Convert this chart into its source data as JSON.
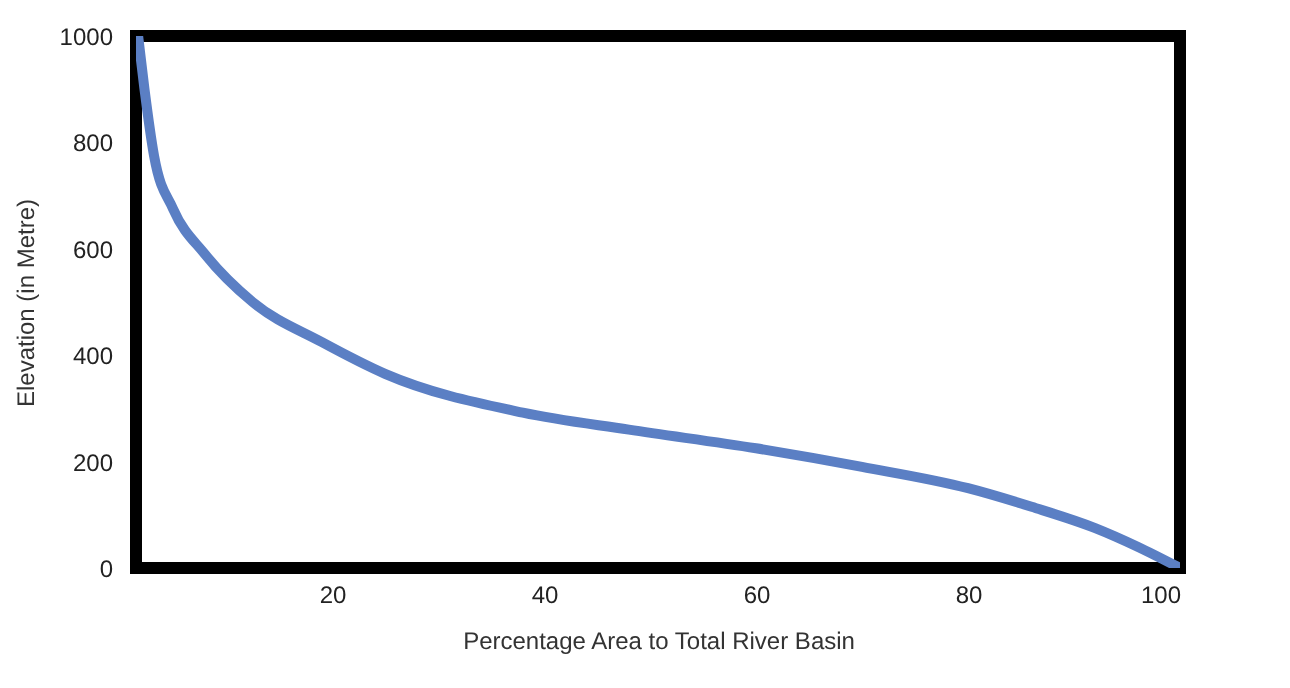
{
  "chart_data": {
    "type": "line",
    "xlabel": "Percentage Area to Total River Basin",
    "ylabel": "Elevation (in Metre)",
    "xlim": [
      1.5,
      100
    ],
    "xticks": [
      20,
      40,
      60,
      80,
      100
    ],
    "ylim": [
      0,
      1000
    ],
    "yticks": [
      0,
      200,
      400,
      600,
      800,
      1000
    ],
    "grid": false,
    "marker": "none",
    "line_style": "solid",
    "series": [
      {
        "color": "#5b7fc4",
        "x": [
          1.7,
          2.3,
          3.2,
          5,
          8,
          12.5,
          19,
          25,
          38,
          48,
          60,
          70,
          80,
          86,
          92,
          96,
          100
        ],
        "values": [
          1000,
          900,
          775,
          675,
          590,
          500,
          425,
          365,
          292,
          260,
          225,
          190,
          150,
          115,
          75,
          40,
          0
        ]
      }
    ]
  }
}
